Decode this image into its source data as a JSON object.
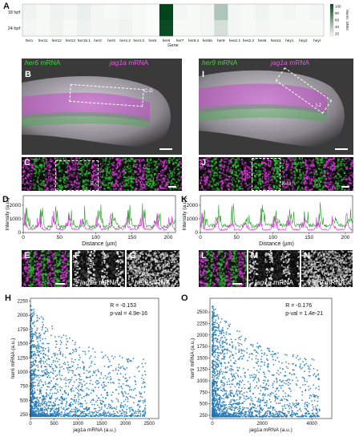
{
  "panels": {
    "A": "A",
    "B": "B",
    "C": "C",
    "D": "D",
    "E": "E",
    "F": "F",
    "G": "G",
    "H": "H",
    "I": "I",
    "J": "J",
    "K": "K",
    "L": "L",
    "M": "M",
    "N": "N",
    "O": "O"
  },
  "heatmap": {
    "rows": [
      "18 hpf",
      "24 hpf"
    ],
    "genes": [
      "her1",
      "her11",
      "her12",
      "her13",
      "her15.1",
      "her2",
      "her3",
      "her4.2",
      "her4.3",
      "her5",
      "her6",
      "her7",
      "her8.2",
      "her8a",
      "her9",
      "hes2.1",
      "hes2.2",
      "hes6",
      "hesx1",
      "hey1",
      "hey2",
      "heyl"
    ],
    "xlabel": "Gene",
    "values": [
      [
        4,
        2,
        5,
        3,
        6,
        3,
        2,
        3,
        2,
        1,
        110,
        3,
        2,
        3,
        28,
        3,
        2,
        4,
        2,
        3,
        2,
        3
      ],
      [
        3,
        2,
        4,
        2,
        5,
        3,
        3,
        4,
        2,
        1,
        105,
        2,
        2,
        3,
        14,
        3,
        2,
        3,
        2,
        2,
        2,
        2
      ]
    ],
    "colorbar": {
      "title": "Norm. UMIs",
      "ticks": [
        "100",
        "80",
        "60",
        "40",
        "20"
      ],
      "low": "#ffffff",
      "high": "#00441b"
    }
  },
  "left": {
    "title_gene1": "her6",
    "title_gene2": "jag1a",
    "mrna": "mRNA",
    "box_B": "C-D",
    "box_C": "E-G",
    "F_label_gene": "jag1a",
    "G_label_gene": "her6",
    "mrna_short": "mRNA"
  },
  "right": {
    "title_gene1": "her9",
    "title_gene2": "jag1a",
    "mrna": "mRNA",
    "box_I": "I-J",
    "box_J": "K-M",
    "M_label_gene": "jag1a",
    "N_label_gene": "her9",
    "mrna_short": "mRNA"
  },
  "colors": {
    "green": "#2ca02c",
    "magenta": "#d62fd6",
    "scatter": "#1f77b4"
  },
  "chart_data": [
    {
      "type": "line",
      "panel": "D",
      "xlabel": "Distance (µm)",
      "ylabel": "Intensity (a.u.)",
      "xlim": [
        0,
        210
      ],
      "ylim": [
        0,
        2700
      ],
      "xticks": [
        0,
        50,
        100,
        150,
        200
      ],
      "yticks": [
        0,
        1000,
        2000
      ],
      "series": [
        {
          "color": "#2ca02c",
          "seed": 3,
          "base": 500,
          "amp": 1500
        },
        {
          "color": "#d62fd6",
          "seed": 7,
          "base": 300,
          "amp": 1200
        }
      ]
    },
    {
      "type": "line",
      "panel": "K",
      "xlabel": "Distance (µm)",
      "ylabel": "Intensity (a.u.)",
      "xlim": [
        0,
        210
      ],
      "ylim": [
        0,
        2700
      ],
      "xticks": [
        0,
        50,
        100,
        150,
        200
      ],
      "yticks": [
        0,
        1000,
        2000
      ],
      "series": [
        {
          "color": "#2ca02c",
          "seed": 11,
          "base": 600,
          "amp": 1400
        },
        {
          "color": "#d62fd6",
          "seed": 19,
          "base": 250,
          "amp": 1100
        }
      ]
    },
    {
      "type": "scatter",
      "panel": "H",
      "xlabel": "jag1a mRNA (a.u.)",
      "ylabel": "her6 mRNA (a.u.)",
      "xlim": [
        0,
        2700
      ],
      "ylim": [
        180,
        2300
      ],
      "xticks": [
        0,
        500,
        1000,
        1500,
        2000,
        2500
      ],
      "yticks": [
        250,
        500,
        750,
        1000,
        1250,
        1500,
        1750,
        2000,
        2250
      ],
      "R": "R = -0.153",
      "pval": "p-val = 4.9e-16",
      "color": "#1f77b4"
    },
    {
      "type": "scatter",
      "panel": "O",
      "xlabel": "jag1a mRNA (a.u.)",
      "ylabel": "her9 mRNA (a.u.)",
      "xlim": [
        -100,
        4800
      ],
      "ylim": [
        180,
        2800
      ],
      "xticks": [
        0,
        2000,
        4000
      ],
      "yticks": [
        250,
        500,
        750,
        1000,
        1250,
        1500,
        1750,
        2000,
        2250,
        2500
      ],
      "R": "R = -0.176",
      "pval": "p-val = 1.4e-21",
      "color": "#1f77b4"
    }
  ]
}
